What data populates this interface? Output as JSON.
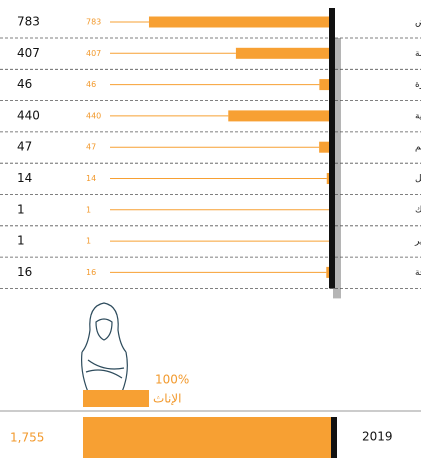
{
  "chart_data": {
    "type": "hbar",
    "categories": [
      "الرياض",
      "مكة المكرمة",
      "المدينة المنورة",
      "المنطقة الشرقية",
      "القصيم",
      "حائل",
      "تبوك",
      "عسير",
      "الباحة"
    ],
    "values": [
      783,
      407,
      46,
      440,
      47,
      14,
      1,
      1,
      16
    ],
    "color": "#f7a033"
  },
  "summary": {
    "percent": 100,
    "percent_label": "100%",
    "group": "الإناث",
    "total": 1755,
    "total_label": "1,755",
    "year": "2019"
  }
}
